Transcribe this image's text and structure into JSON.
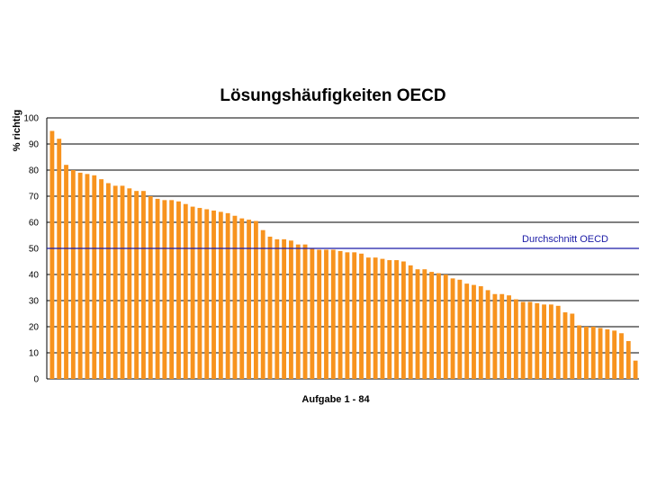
{
  "chart_data": {
    "type": "bar",
    "title": "Lösungshäufigkeiten OECD",
    "xlabel": "Aufgabe 1 - 84",
    "ylabel": "% richtig",
    "ylim": [
      0,
      100
    ],
    "yticks": [
      0,
      10,
      20,
      30,
      40,
      50,
      60,
      70,
      80,
      90,
      100
    ],
    "grid": "horizontal",
    "series_color": "#f7931e",
    "grid_color": "#000000",
    "values": [
      95,
      92,
      82,
      80,
      79,
      78.5,
      78,
      76.5,
      75,
      74,
      74,
      73,
      72,
      72,
      70,
      69,
      68.5,
      68.5,
      68,
      67,
      66,
      65.5,
      65,
      64.5,
      64,
      63.5,
      62.5,
      61.5,
      61,
      60.5,
      57,
      54.5,
      53.5,
      53.5,
      53,
      51.5,
      51.5,
      50,
      49.5,
      49.5,
      49.5,
      49,
      48.5,
      48.5,
      48,
      46.5,
      46.5,
      46,
      45.5,
      45.5,
      45,
      43.5,
      42,
      42,
      41,
      40.5,
      40,
      38.5,
      38,
      36.5,
      36,
      35.5,
      34,
      32.5,
      32.5,
      32,
      30.5,
      29.5,
      29.5,
      29,
      28.5,
      28.5,
      28,
      25.5,
      25,
      20.5,
      20,
      20,
      19.5,
      19,
      18.5,
      17.5,
      14.5,
      7
    ],
    "reference_line": {
      "value": 50,
      "label": "Durchschnitt OECD",
      "color": "#1a1aa6"
    }
  }
}
